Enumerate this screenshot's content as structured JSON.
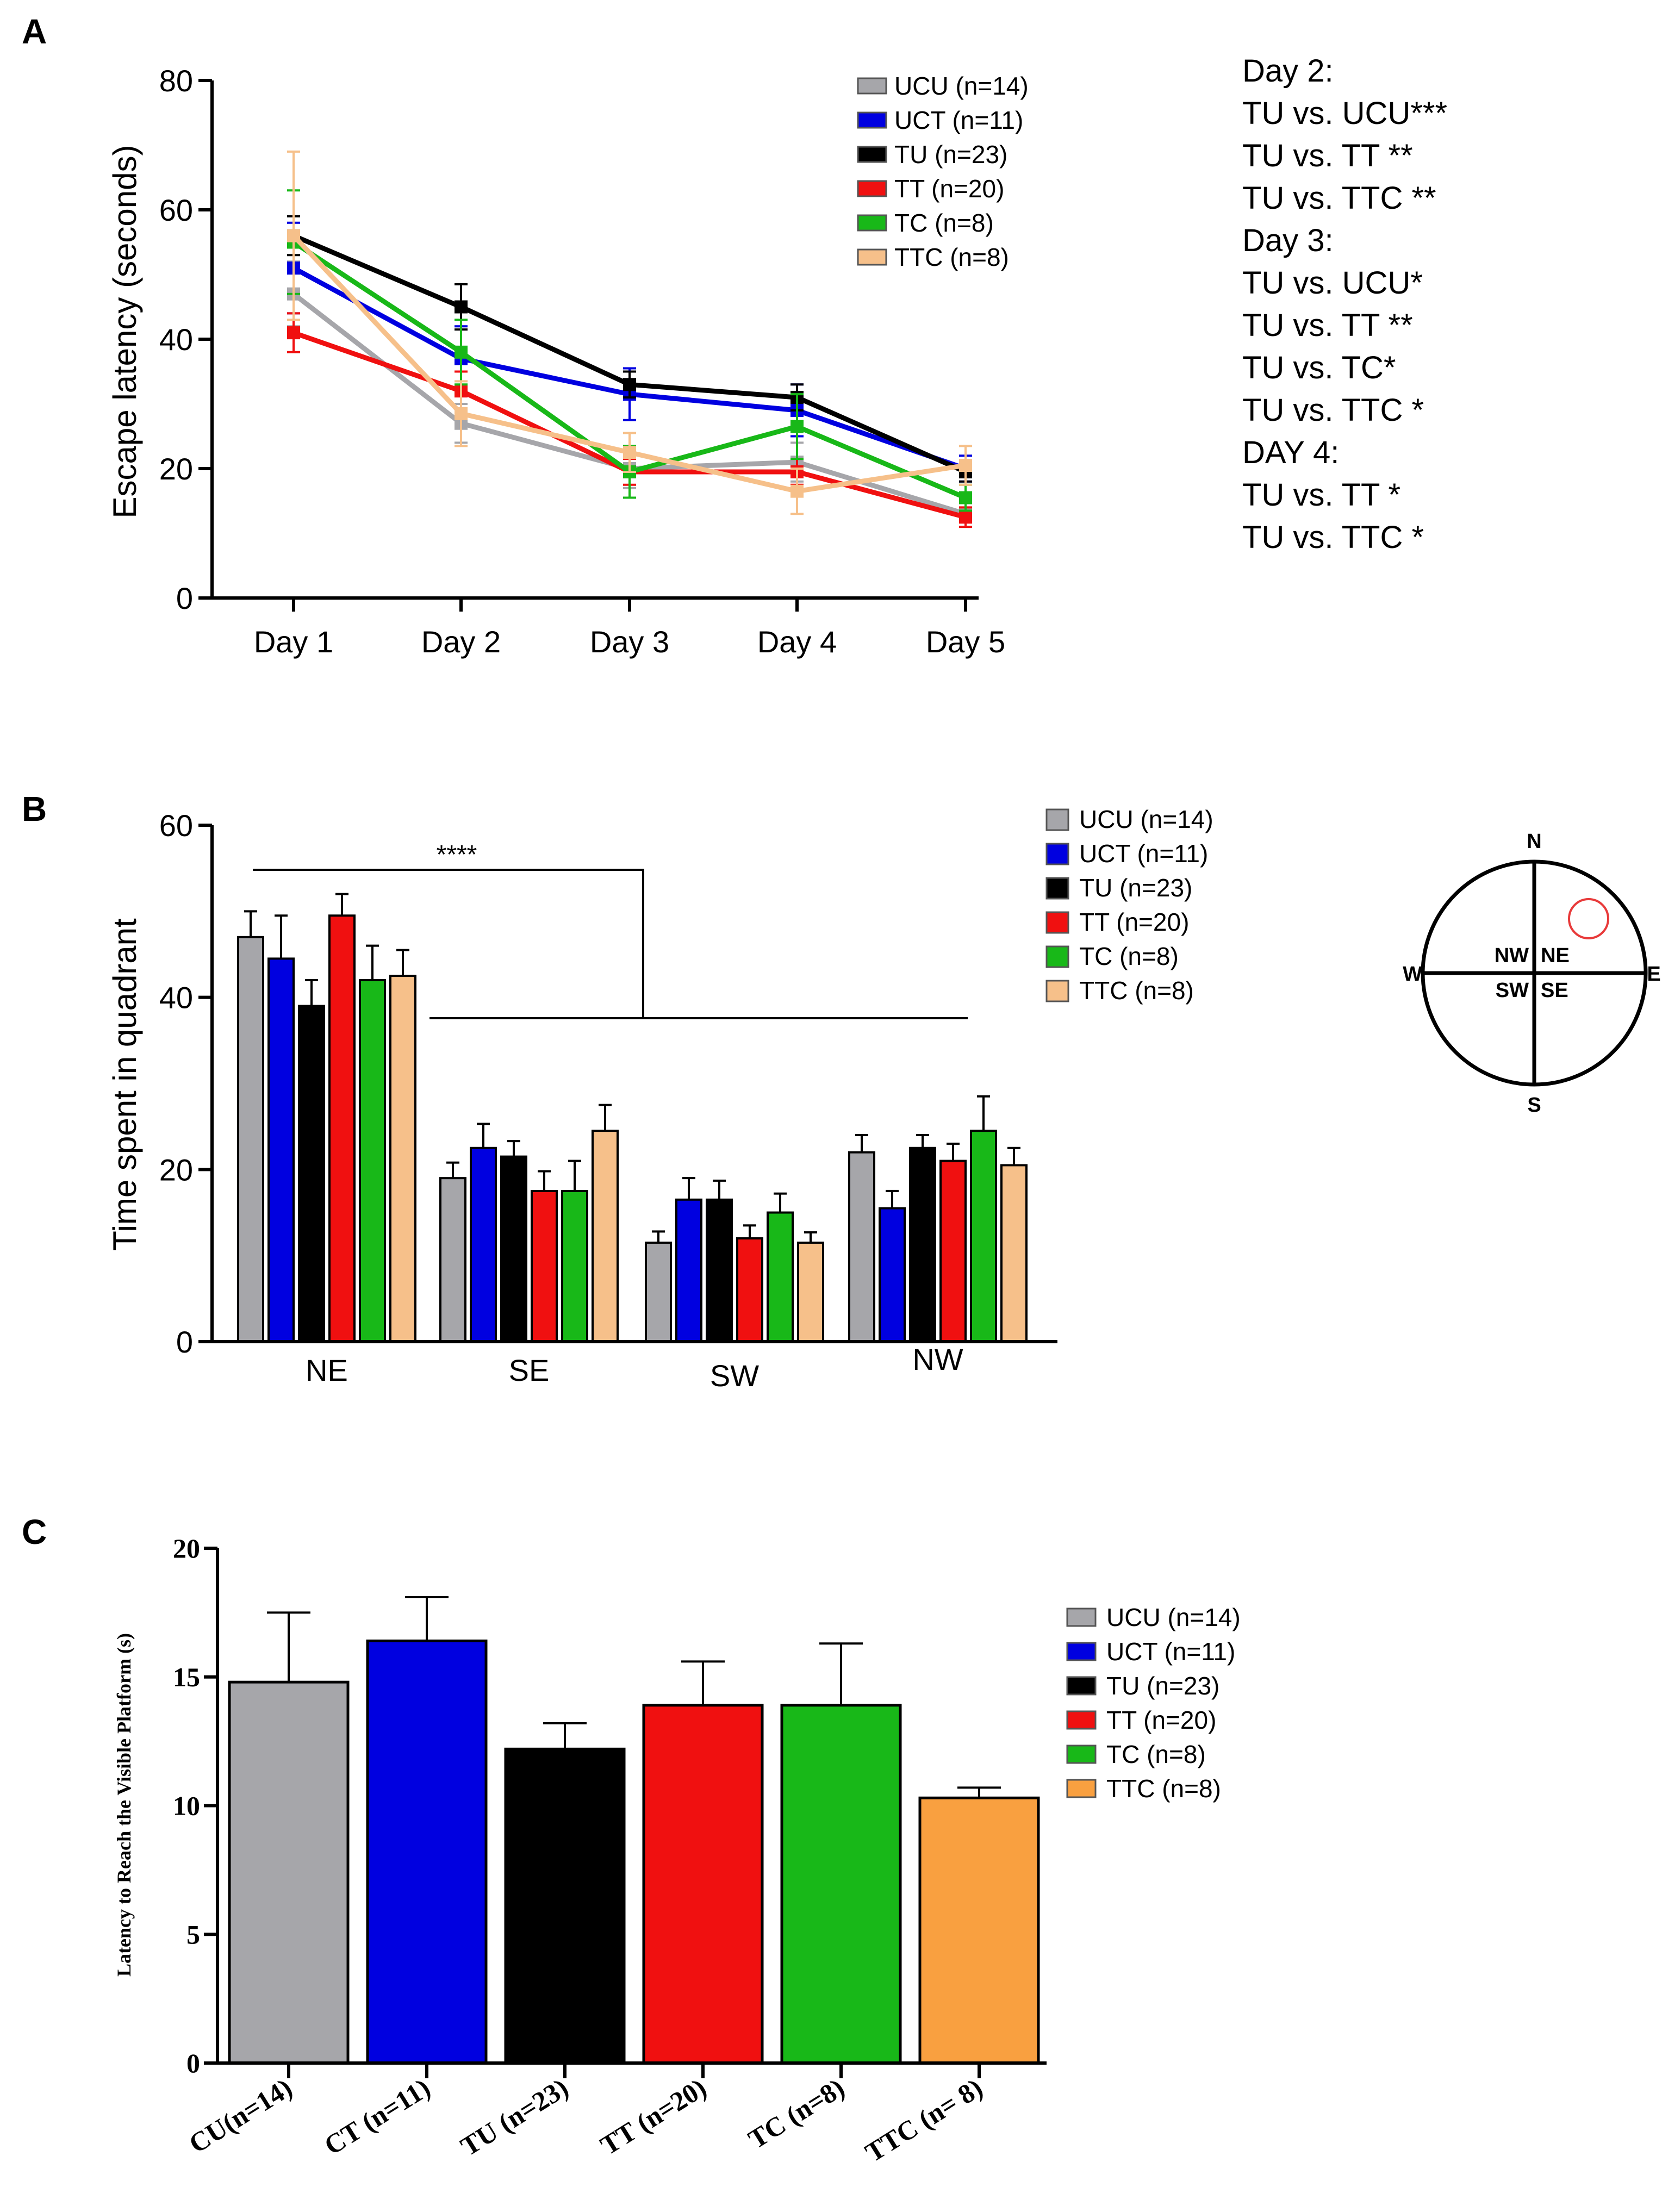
{
  "colors": {
    "UCU": "#a6a6aa",
    "UCT": "#0000e0",
    "TU": "#000000",
    "TT": "#f01010",
    "TC": "#18b818",
    "TTC": "#f6c08a",
    "TTC_C": "#f9a040"
  },
  "chart_data": [
    {
      "panel": "A",
      "type": "line",
      "ylabel": "Escape  latency (seconds)",
      "xlabel": "",
      "ylim": [
        0,
        80
      ],
      "yticks": [
        "0",
        "20",
        "40",
        "60",
        "80"
      ],
      "categories": [
        "Day 1",
        "Day 2",
        "Day 3",
        "Day 4",
        "Day 5"
      ],
      "series": [
        {
          "key": "UCU",
          "name": "UCU (n=14)",
          "values": [
            47,
            27,
            20,
            21,
            13
          ],
          "errors": [
            5,
            3,
            3,
            3,
            2
          ]
        },
        {
          "key": "UCT",
          "name": "UCT (n=11)",
          "values": [
            51,
            37,
            31.5,
            29,
            20
          ],
          "errors": [
            7,
            5,
            4,
            4,
            2
          ]
        },
        {
          "key": "TU",
          "name": "TU (n=23)",
          "values": [
            56,
            45,
            33,
            31,
            19.5
          ],
          "errors": [
            3,
            3.5,
            2,
            2,
            1.5
          ]
        },
        {
          "key": "TT",
          "name": "TT (n=20)",
          "values": [
            41,
            32,
            19.5,
            19.5,
            12.5
          ],
          "errors": [
            3,
            3,
            2,
            2,
            1.5
          ]
        },
        {
          "key": "TC",
          "name": "TC (n=8)",
          "values": [
            55,
            38,
            19.5,
            26.5,
            15.5
          ],
          "errors": [
            8,
            5,
            4,
            5,
            2
          ]
        },
        {
          "key": "TTC",
          "name": "TTC (n=8)",
          "values": [
            56,
            28.5,
            22.5,
            16.5,
            20.5
          ],
          "errors": [
            13,
            5,
            3,
            3.5,
            3
          ]
        }
      ],
      "annotations": [
        "Day 2:",
        "TU vs. UCU***",
        "TU vs. TT **",
        "TU vs. TTC **",
        "Day 3:",
        "TU vs. UCU*",
        "TU vs. TT **",
        "TU vs. TC*",
        "TU vs. TTC *",
        "DAY 4:",
        "TU vs. TT *",
        "TU vs. TTC *"
      ]
    },
    {
      "panel": "B",
      "type": "bar",
      "ylabel": "Time spent in quadrant",
      "xlabel": "",
      "ylim": [
        0,
        60
      ],
      "yticks": [
        "0",
        "20",
        "40",
        "60"
      ],
      "categories": [
        "NE",
        "SE",
        "SW",
        "NW"
      ],
      "series": [
        {
          "key": "UCU",
          "name": "UCU (n=14)",
          "values": [
            47,
            19,
            11.5,
            22
          ],
          "errors": [
            3,
            1.8,
            1.3,
            2
          ]
        },
        {
          "key": "UCT",
          "name": "UCT (n=11)",
          "values": [
            44.5,
            22.5,
            16.5,
            15.5
          ],
          "errors": [
            5,
            2.8,
            2.5,
            2
          ]
        },
        {
          "key": "TU",
          "name": "TU (n=23)",
          "values": [
            39,
            21.5,
            16.5,
            22.5
          ],
          "errors": [
            3,
            1.8,
            2.2,
            1.5
          ]
        },
        {
          "key": "TT",
          "name": "TT (n=20)",
          "values": [
            49.5,
            17.5,
            12,
            21
          ],
          "errors": [
            2.5,
            2.3,
            1.5,
            2
          ]
        },
        {
          "key": "TC",
          "name": "TC (n=8)",
          "values": [
            42,
            17.5,
            15,
            24.5
          ],
          "errors": [
            4,
            3.5,
            2.2,
            4
          ]
        },
        {
          "key": "TTC",
          "name": "TTC (n=8)",
          "values": [
            42.5,
            24.5,
            11.5,
            20.5
          ],
          "errors": [
            3,
            3,
            1.2,
            2
          ]
        }
      ],
      "significance": "****",
      "compass": {
        "N": "N",
        "S": "S",
        "E": "E",
        "W": "W",
        "NW": "NW",
        "NE": "NE",
        "SW": "SW",
        "SE": "SE"
      }
    },
    {
      "panel": "C",
      "type": "bar",
      "ylabel": "Latency to Reach the Visible Platform (s)",
      "xlabel": "",
      "ylim": [
        0,
        20
      ],
      "yticks": [
        "0",
        "5",
        "10",
        "15",
        "20"
      ],
      "categories": [
        "CU(n=14)",
        "CT (n=11)",
        "TU (n=23)",
        "TT (n=20)",
        "TC (n=8)",
        "TTC (n= 8)"
      ],
      "series": [
        {
          "name": "Latency",
          "values": [
            14.8,
            16.4,
            12.2,
            13.9,
            13.9,
            10.3
          ],
          "errors": [
            2.7,
            1.7,
            1.0,
            1.7,
            2.4,
            0.4
          ],
          "colorKeys": [
            "UCU",
            "UCT",
            "TU",
            "TT",
            "TC",
            "TTC_C"
          ]
        }
      ],
      "legend": [
        {
          "key": "UCU",
          "name": "UCU (n=14)"
        },
        {
          "key": "UCT",
          "name": "UCT (n=11)"
        },
        {
          "key": "TU",
          "name": "TU (n=23)"
        },
        {
          "key": "TT",
          "name": "TT (n=20)"
        },
        {
          "key": "TC",
          "name": "TC (n=8)"
        },
        {
          "key": "TTC_C",
          "name": "TTC (n=8)"
        }
      ]
    }
  ],
  "panels": {
    "A": "A",
    "B": "B",
    "C": "C"
  }
}
